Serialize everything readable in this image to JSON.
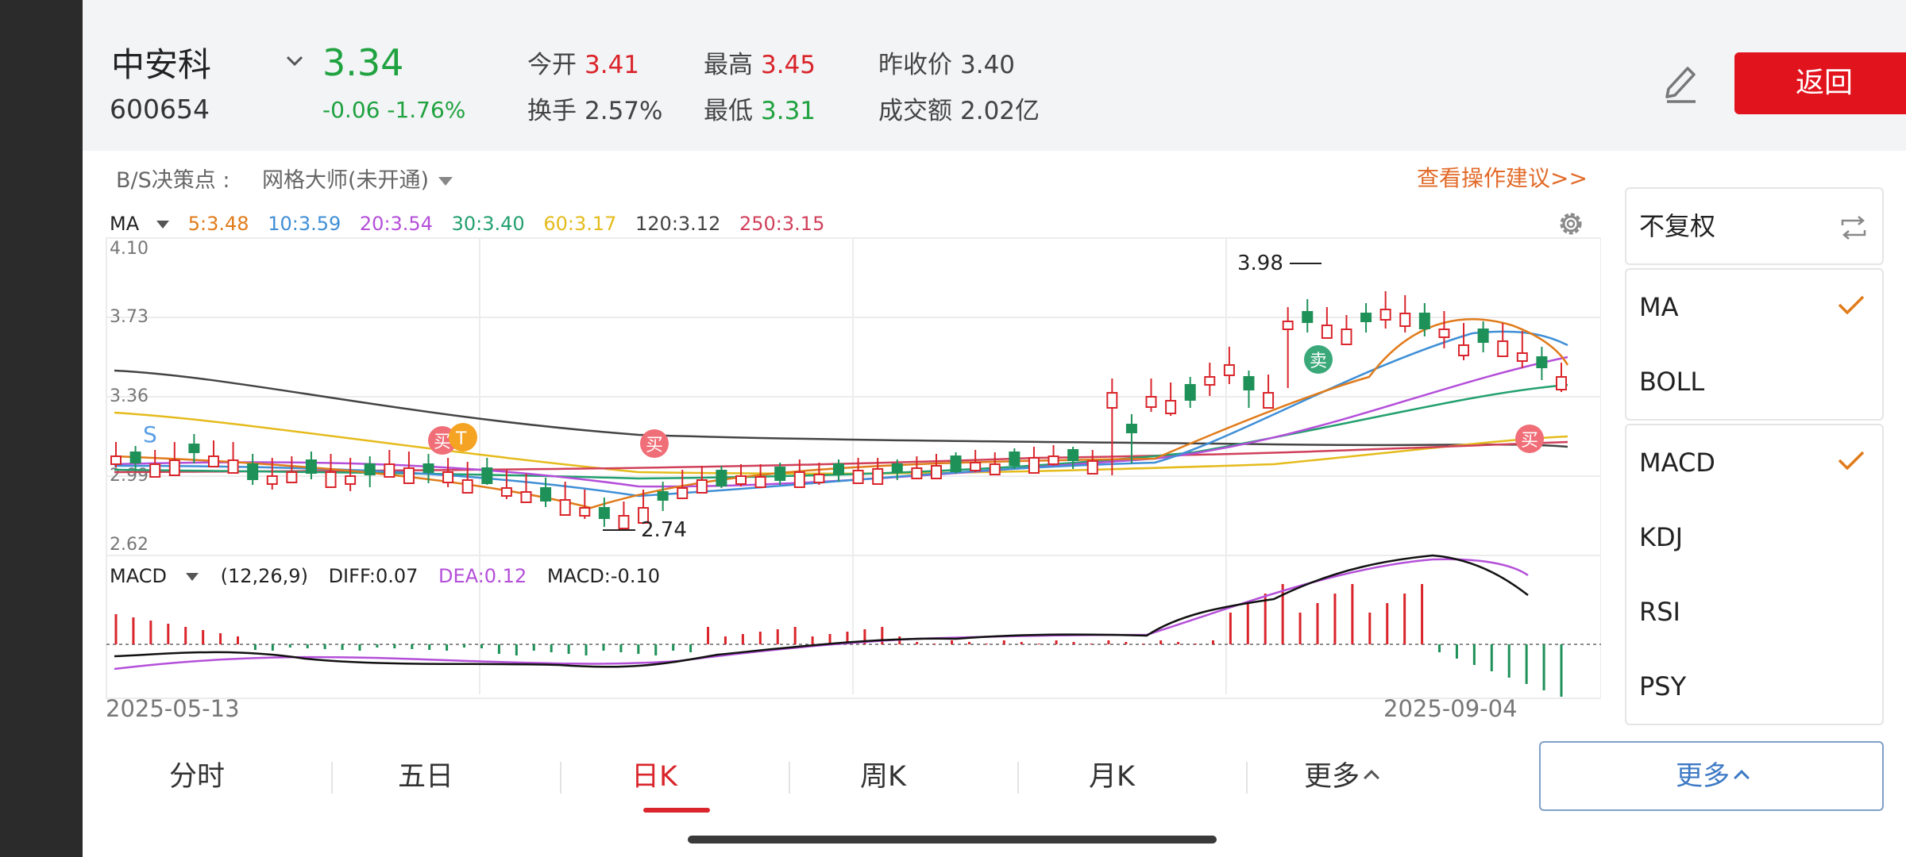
{
  "header": {
    "name": "中安科",
    "code": "600654",
    "price": "3.34",
    "change": "-0.06 -1.76%",
    "quotes": [
      {
        "label": "今开",
        "value": "3.41",
        "tone": "red"
      },
      {
        "label": "最高",
        "value": "3.45",
        "tone": "red"
      },
      {
        "label": "昨收价",
        "value": "3.40",
        "tone": "plain"
      },
      {
        "label": "换手",
        "value": "2.57%",
        "tone": "plain"
      },
      {
        "label": "最低",
        "value": "3.31",
        "tone": "green"
      },
      {
        "label": "成交额",
        "value": "2.02亿",
        "tone": "plain"
      }
    ],
    "back_label": "返回"
  },
  "bs": {
    "label": "B/S决策点 :",
    "dropdown": "网格大师(未开通)",
    "advice_link": "查看操作建议>>"
  },
  "ma_legend": {
    "title": "MA",
    "items": [
      {
        "text": "5:3.48",
        "color": "#e07b1a"
      },
      {
        "text": "10:3.59",
        "color": "#3f8fd6"
      },
      {
        "text": "20:3.54",
        "color": "#b44fd9"
      },
      {
        "text": "30:3.40",
        "color": "#23a06f"
      },
      {
        "text": "60:3.17",
        "color": "#e5bb1c"
      },
      {
        "text": "120:3.12",
        "color": "#444444"
      },
      {
        "text": "250:3.15",
        "color": "#d0405a"
      }
    ]
  },
  "macd_legend": {
    "title": "MACD",
    "params": "(12,26,9)",
    "diff": "DIFF:0.07",
    "dea": "DEA:0.12",
    "macd": "MACD:-0.10"
  },
  "chart_data": {
    "type": "candlestick",
    "y_ticks": [
      "4.10",
      "3.73",
      "3.36",
      "2.99",
      "2.62"
    ],
    "ylim": [
      2.62,
      4.1
    ],
    "high_annotation": "3.98",
    "low_annotation": "2.74",
    "markers": {
      "s": "S",
      "buy": "买",
      "t": "T",
      "sell": "卖"
    },
    "date_start": "2025-05-13",
    "date_end": "2025-09-04"
  },
  "tabs": [
    "分时",
    "五日",
    "日K",
    "周K",
    "月K",
    "更多"
  ],
  "active_tab": 2,
  "right_panel": {
    "adjust": "不复权",
    "main_indicators": [
      {
        "label": "MA",
        "checked": true
      },
      {
        "label": "BOLL",
        "checked": false
      }
    ],
    "sub_indicators": [
      {
        "label": "MACD",
        "checked": true
      },
      {
        "label": "KDJ",
        "checked": false
      },
      {
        "label": "RSI",
        "checked": false
      },
      {
        "label": "PSY",
        "checked": false
      }
    ],
    "more_label": "更多"
  }
}
